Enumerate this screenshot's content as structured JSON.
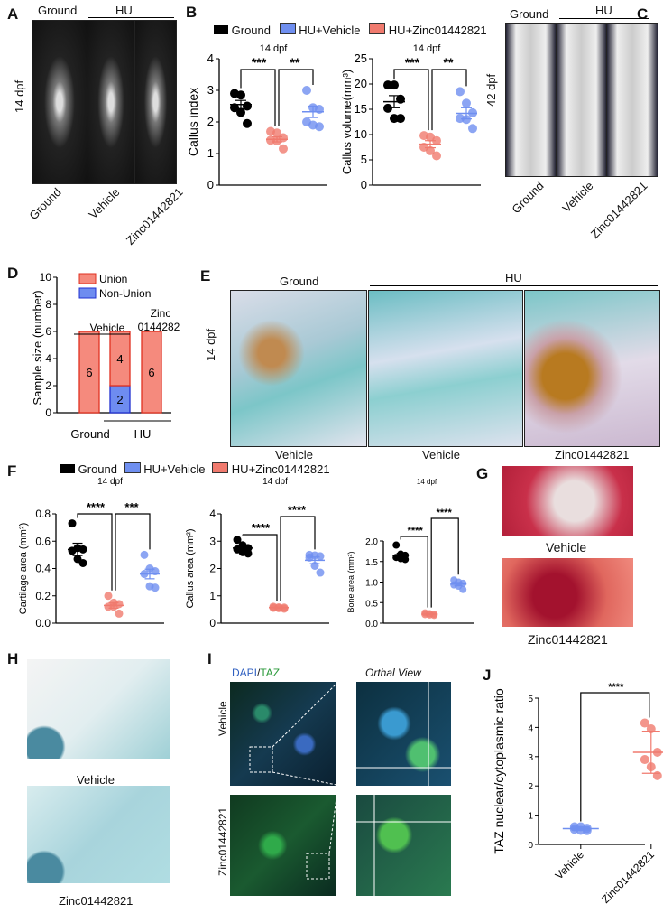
{
  "colors": {
    "ground": "#000000",
    "hu_vehicle": "#6f8ff0",
    "hu_zinc": "#f07a6e",
    "union": "#f58a7d",
    "nonunion": "#6e8cf0"
  },
  "legend": {
    "ground": "Ground",
    "hu_vehicle": "HU+Vehicle",
    "hu_zinc": "HU+Zinc01442821"
  },
  "panelA": {
    "label": "A",
    "group_ground": "Ground",
    "group_hu": "HU",
    "side": "14 dpf",
    "xlabels": [
      "Ground",
      "Vehicle",
      "Zinc01442821"
    ]
  },
  "panelC": {
    "label": "C",
    "group_ground": "Ground",
    "group_hu": "HU",
    "side": "42 dpf",
    "xlabels": [
      "Ground",
      "Vehicle",
      "Zinc01442821"
    ]
  },
  "panelE": {
    "label": "E",
    "group_ground": "Ground",
    "group_hu": "HU",
    "side": "14 dpf",
    "xlabels": [
      "Vehicle",
      "Vehicle",
      "Zinc01442821"
    ]
  },
  "panelG": {
    "label": "G",
    "captions": [
      "Vehicle",
      "Zinc01442821"
    ]
  },
  "panelH": {
    "label": "H",
    "captions": [
      "Vehicle",
      "Zinc01442821"
    ]
  },
  "panelI": {
    "label": "I",
    "stain_dapi": "DAPI",
    "stain_sep": "/",
    "stain_taz": "TAZ",
    "orthal": "Orthal View",
    "rows": [
      "Vehicle",
      "Zinc01442821"
    ]
  },
  "chart_data": [
    {
      "id": "B1",
      "panel": "B",
      "type": "scatter",
      "title": "14 dpf",
      "ylabel": "Callus index",
      "ylim": [
        0,
        4
      ],
      "ticks": [
        0,
        1,
        2,
        3,
        4
      ],
      "groups": [
        {
          "name": "Ground",
          "points": [
            2.9,
            2.85,
            2.5,
            2.45,
            2.3,
            1.95
          ],
          "mean": 2.55,
          "sem": 0.13
        },
        {
          "name": "HU+Zinc01442821",
          "points": [
            1.7,
            1.65,
            1.5,
            1.42,
            1.4,
            1.15
          ],
          "mean": 1.45,
          "sem": 0.08
        },
        {
          "name": "HU+Vehicle",
          "points": [
            3.0,
            2.45,
            2.4,
            2.0,
            1.9,
            1.85
          ],
          "mean": 2.32,
          "sem": 0.18
        }
      ],
      "sig": [
        {
          "from": 0,
          "to": 1,
          "label": "***"
        },
        {
          "from": 1,
          "to": 2,
          "label": "**"
        }
      ]
    },
    {
      "id": "B2",
      "panel": "B",
      "type": "scatter",
      "title": "14 dpf",
      "ylabel": "Callus volume(mm³)",
      "ylim": [
        0,
        25
      ],
      "ticks": [
        0,
        5,
        10,
        15,
        20,
        25
      ],
      "groups": [
        {
          "name": "Ground",
          "points": [
            19.8,
            19.8,
            17.0,
            15.2,
            13.2,
            13.2
          ],
          "mean": 16.5,
          "sem": 1.2
        },
        {
          "name": "HU+Zinc01442821",
          "points": [
            9.8,
            9.5,
            8.8,
            7.5,
            6.8,
            5.8
          ],
          "mean": 8.1,
          "sem": 0.7
        },
        {
          "name": "HU+Vehicle",
          "points": [
            18.5,
            16.2,
            14.3,
            13.2,
            13.0,
            11.2
          ],
          "mean": 14.2,
          "sem": 1.1
        }
      ],
      "sig": [
        {
          "from": 0,
          "to": 1,
          "label": "***"
        },
        {
          "from": 1,
          "to": 2,
          "label": "**"
        }
      ]
    },
    {
      "id": "D",
      "panel": "D",
      "type": "bar",
      "stacked": true,
      "ylabel": "Sample size (number)",
      "ylim": [
        0,
        10
      ],
      "ticks": [
        0,
        2,
        4,
        6,
        8,
        10
      ],
      "categories": [
        "Ground",
        "Vehicle",
        "Zinc 0144282"
      ],
      "series": [
        {
          "name": "Non-Union",
          "values": [
            0,
            2,
            0
          ]
        },
        {
          "name": "Union",
          "values": [
            6,
            4,
            6
          ]
        }
      ],
      "bar_labels": [
        [
          "",
          "2",
          ""
        ],
        [
          "6",
          "4",
          "6"
        ]
      ],
      "legend": [
        "Union",
        "Non-Union"
      ],
      "xgroups": [
        "Ground",
        "HU"
      ],
      "cat_labels": {
        "vehicle": "Vehicle",
        "zinc1": "Zinc",
        "zinc2": "0144282"
      }
    },
    {
      "id": "F1",
      "panel": "F",
      "type": "scatter",
      "title": "14 dpf",
      "ylabel": "Cartilage  area  (mm²)",
      "ylim": [
        0,
        0.8
      ],
      "ticks": [
        0,
        0.2,
        0.4,
        0.6,
        0.8
      ],
      "groups": [
        {
          "name": "Ground",
          "points": [
            0.73,
            0.55,
            0.54,
            0.53,
            0.47,
            0.44
          ],
          "mean": 0.54,
          "sem": 0.045
        },
        {
          "name": "HU+Zinc01442821",
          "points": [
            0.2,
            0.15,
            0.14,
            0.12,
            0.12,
            0.07
          ],
          "mean": 0.13,
          "sem": 0.02
        },
        {
          "name": "HU+Vehicle",
          "points": [
            0.5,
            0.4,
            0.38,
            0.36,
            0.27,
            0.26
          ],
          "mean": 0.36,
          "sem": 0.035
        }
      ],
      "sig": [
        {
          "from": 0,
          "to": 1,
          "label": "****"
        },
        {
          "from": 1,
          "to": 2,
          "label": "***"
        }
      ]
    },
    {
      "id": "F2",
      "panel": "F",
      "type": "scatter",
      "title": "14 dpf",
      "ylabel": "Callus area  (mm²)",
      "ylim": [
        0,
        4
      ],
      "ticks": [
        0,
        1,
        2,
        3,
        4
      ],
      "groups": [
        {
          "name": "Ground",
          "points": [
            3.05,
            2.85,
            2.75,
            2.7,
            2.6,
            2.55
          ],
          "mean": 2.75,
          "sem": 0.1
        },
        {
          "name": "HU+Zinc01442821",
          "points": [
            0.6,
            0.58,
            0.57,
            0.56,
            0.55,
            0.53
          ],
          "mean": 0.57,
          "sem": 0.02
        },
        {
          "name": "HU+Vehicle",
          "points": [
            2.5,
            2.48,
            2.45,
            2.4,
            2.1,
            1.85
          ],
          "mean": 2.3,
          "sem": 0.12
        }
      ],
      "sig": [
        {
          "from": 0,
          "to": 1,
          "label": "****"
        },
        {
          "from": 1,
          "to": 2,
          "label": "****"
        }
      ]
    },
    {
      "id": "F3",
      "panel": "F",
      "type": "scatter",
      "title": "14 dpf",
      "ylabel": "Bone area  (mm²)",
      "ylim": [
        0,
        2.0
      ],
      "ticks": [
        0,
        0.5,
        1.0,
        1.5,
        2.0
      ],
      "groups": [
        {
          "name": "Ground",
          "points": [
            1.9,
            1.68,
            1.65,
            1.6,
            1.57,
            1.55
          ],
          "mean": 1.65,
          "sem": 0.05
        },
        {
          "name": "HU+Zinc01442821",
          "points": [
            0.25,
            0.23,
            0.22,
            0.21,
            0.2,
            0.19
          ],
          "mean": 0.22,
          "sem": 0.01
        },
        {
          "name": "HU+Vehicle",
          "points": [
            1.05,
            1.0,
            0.97,
            0.93,
            0.9,
            0.82
          ],
          "mean": 0.95,
          "sem": 0.04
        }
      ],
      "sig": [
        {
          "from": 0,
          "to": 1,
          "label": "****"
        },
        {
          "from": 1,
          "to": 2,
          "label": "****"
        }
      ]
    },
    {
      "id": "J",
      "panel": "J",
      "type": "scatter",
      "ylabel": "TAZ nuclear/cytoplasmic ratio",
      "ylim": [
        0,
        5
      ],
      "ticks": [
        0,
        1,
        2,
        3,
        4,
        5
      ],
      "categories": [
        "Vehicle",
        "Zinc01442821"
      ],
      "groups": [
        {
          "name": "Vehicle",
          "points": [
            0.6,
            0.6,
            0.55,
            0.52,
            0.48,
            0.47
          ],
          "mean": 0.54,
          "sd": 0.05
        },
        {
          "name": "Zinc01442821",
          "points": [
            4.15,
            3.95,
            3.15,
            2.9,
            2.65,
            2.35
          ],
          "mean": 3.15,
          "sd": 0.72
        }
      ],
      "sig": [
        {
          "from": 0,
          "to": 1,
          "label": "****"
        }
      ]
    }
  ]
}
